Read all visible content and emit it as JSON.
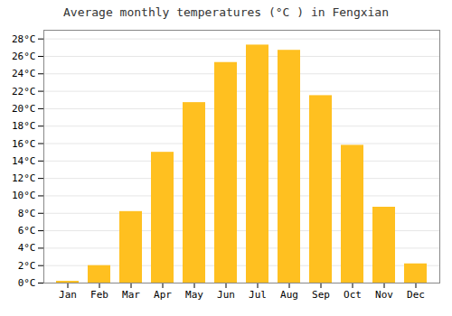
{
  "chart_data": {
    "type": "bar",
    "title": "Average monthly temperatures (°C ) in Fengxian",
    "categories": [
      "Jan",
      "Feb",
      "Mar",
      "Apr",
      "May",
      "Jun",
      "Jul",
      "Aug",
      "Sep",
      "Oct",
      "Nov",
      "Dec"
    ],
    "values": [
      0.2,
      2.0,
      8.2,
      15.0,
      20.7,
      25.3,
      27.3,
      26.7,
      21.5,
      15.8,
      8.7,
      2.2
    ],
    "color": "#FFC020",
    "ylim": [
      0,
      29
    ],
    "yticks": [
      {
        "value": 0,
        "label": "0°C"
      },
      {
        "value": 2,
        "label": "2°C"
      },
      {
        "value": 4,
        "label": "4°C"
      },
      {
        "value": 6,
        "label": "6°C"
      },
      {
        "value": 8,
        "label": "8°C"
      },
      {
        "value": 10,
        "label": "10°C"
      },
      {
        "value": 12,
        "label": "12°C"
      },
      {
        "value": 14,
        "label": "14°C"
      },
      {
        "value": 16,
        "label": "16°C"
      },
      {
        "value": 18,
        "label": "18°C"
      },
      {
        "value": 20,
        "label": "20°C"
      },
      {
        "value": 22,
        "label": "22°C"
      },
      {
        "value": 24,
        "label": "24°C"
      },
      {
        "value": 26,
        "label": "26°C"
      },
      {
        "value": 28,
        "label": "28°C"
      }
    ],
    "grid": true
  }
}
